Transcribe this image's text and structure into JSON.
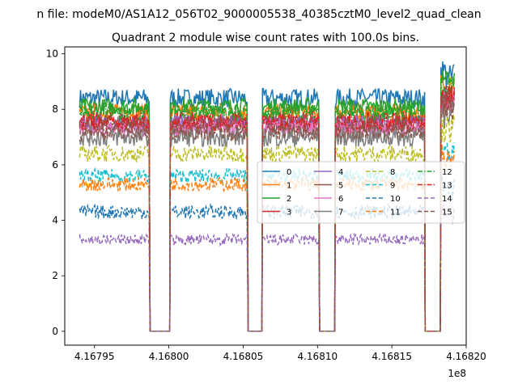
{
  "figure": {
    "suptitle": "n file: modeM0/AS1A12_056T02_9000005538_40385cztM0_level2_quad_clean",
    "title": "Quadrant 2 module wise count rates with 100.0s bins."
  },
  "chart_data": {
    "type": "line",
    "title": "Quadrant 2 module wise count rates with 100.0s bins.",
    "xlabel": "",
    "ylabel": "",
    "x_offset_label": "1e8",
    "xlim": [
      4.16793,
      4.1682
    ],
    "ylim": [
      -0.5,
      10.25
    ],
    "x_ticks": [
      4.16795,
      4.168,
      4.16805,
      4.1681,
      4.16815,
      4.1682
    ],
    "x_tick_labels": [
      "4.16795",
      "4.16800",
      "4.16805",
      "4.16810",
      "4.16815",
      "4.16820"
    ],
    "y_ticks": [
      0,
      2,
      4,
      6,
      8,
      10
    ],
    "y_tick_labels": [
      "0",
      "2",
      "4",
      "6",
      "8",
      "10"
    ],
    "grid": false,
    "legend_placement": "center-right",
    "legend_columns": 4,
    "active_segments": [
      [
        4.16794,
        4.167987
      ],
      [
        4.168001,
        4.168053
      ],
      [
        4.168063,
        4.168101
      ],
      [
        4.168112,
        4.168172
      ],
      [
        4.168183,
        4.168192
      ]
    ],
    "gap_value": 0,
    "series": [
      {
        "name": "0",
        "color": "#1f77b4",
        "dash": "solid",
        "level": 8.4,
        "spread": 0.35
      },
      {
        "name": "1",
        "color": "#ff7f0e",
        "dash": "solid",
        "level": 7.9,
        "spread": 0.3
      },
      {
        "name": "2",
        "color": "#2ca02c",
        "dash": "solid",
        "level": 8.1,
        "spread": 0.3
      },
      {
        "name": "3",
        "color": "#d62728",
        "dash": "solid",
        "level": 7.6,
        "spread": 0.3
      },
      {
        "name": "4",
        "color": "#9467bd",
        "dash": "solid",
        "level": 7.5,
        "spread": 0.3
      },
      {
        "name": "5",
        "color": "#8c564b",
        "dash": "solid",
        "level": 7.4,
        "spread": 0.3
      },
      {
        "name": "6",
        "color": "#e377c2",
        "dash": "solid",
        "level": 7.3,
        "spread": 0.3
      },
      {
        "name": "7",
        "color": "#7f7f7f",
        "dash": "solid",
        "level": 7.0,
        "spread": 0.35
      },
      {
        "name": "8",
        "color": "#bcbd22",
        "dash": "dashed",
        "level": 6.4,
        "spread": 0.3
      },
      {
        "name": "9",
        "color": "#17becf",
        "dash": "dashed",
        "level": 5.6,
        "spread": 0.25
      },
      {
        "name": "10",
        "color": "#1f77b4",
        "dash": "dashed",
        "level": 4.3,
        "spread": 0.25
      },
      {
        "name": "11",
        "color": "#ff7f0e",
        "dash": "dashed",
        "level": 5.3,
        "spread": 0.25
      },
      {
        "name": "12",
        "color": "#2ca02c",
        "dash": "dashdot",
        "level": 7.9,
        "spread": 0.3
      },
      {
        "name": "13",
        "color": "#d62728",
        "dash": "dashdot",
        "level": 7.5,
        "spread": 0.3
      },
      {
        "name": "14",
        "color": "#9467bd",
        "dash": "dashed",
        "level": 3.3,
        "spread": 0.2
      },
      {
        "name": "15",
        "color": "#8c564b",
        "dash": "dashed",
        "level": 7.2,
        "spread": 0.3
      }
    ]
  }
}
